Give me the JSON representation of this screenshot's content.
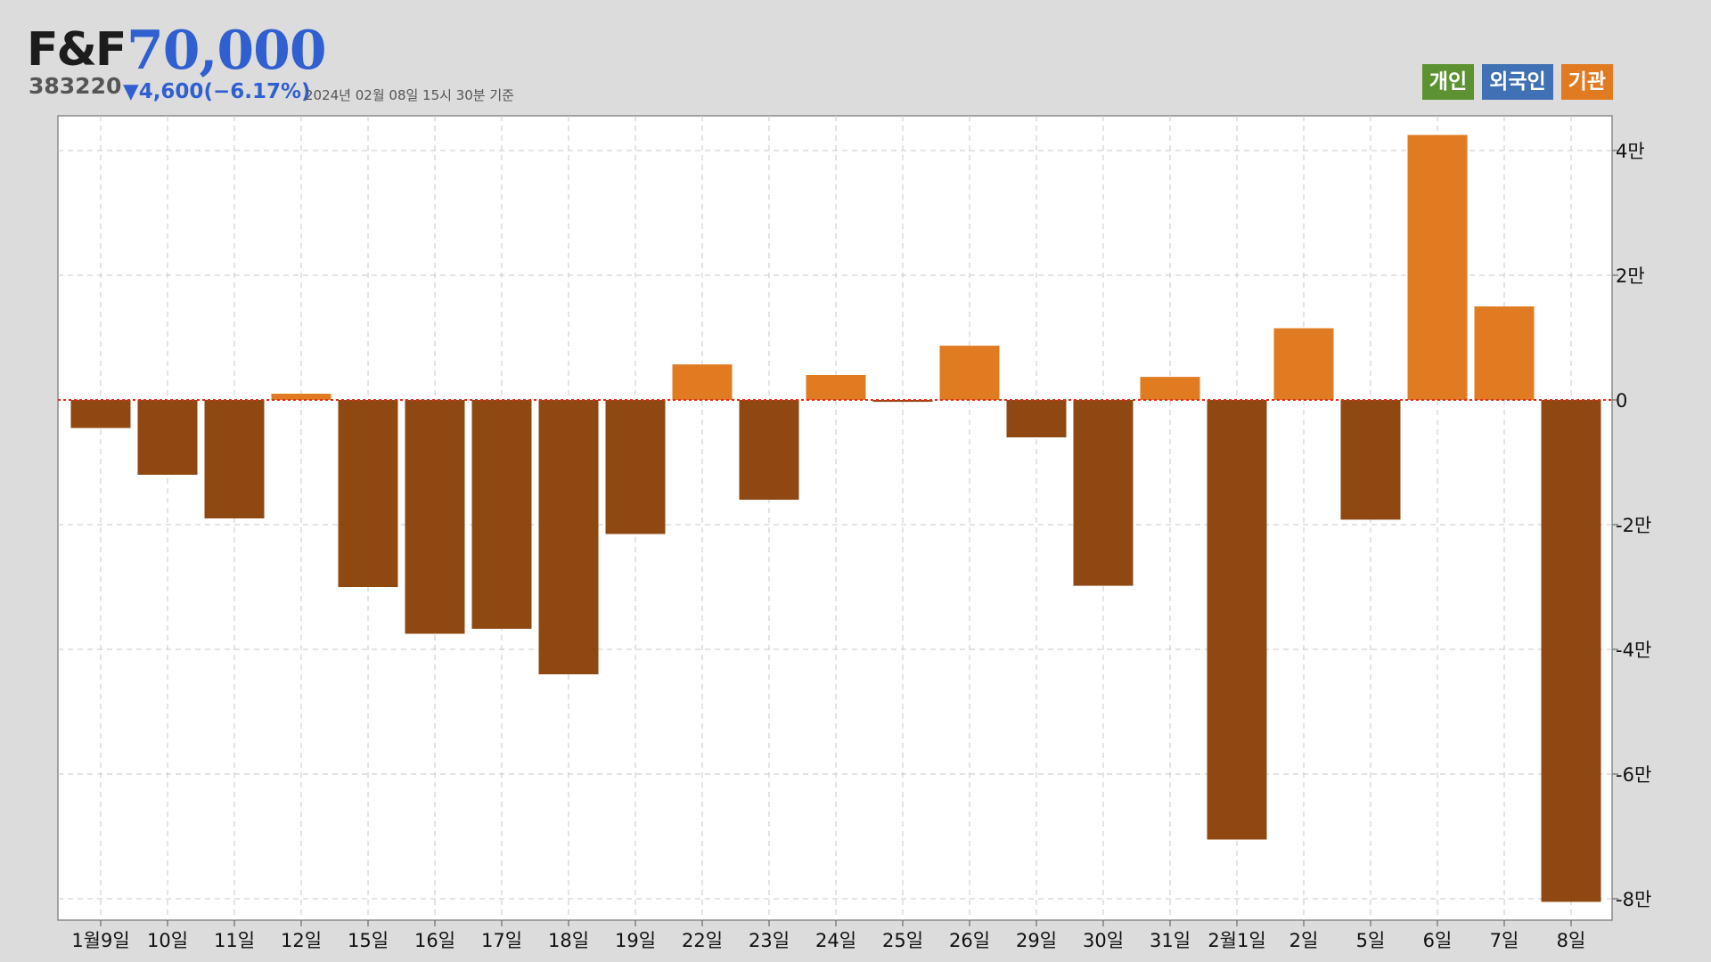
{
  "header": {
    "name": "F&F",
    "price": "70,000",
    "code": "383220",
    "change": "▼4,600(−6.17%)",
    "timestamp": "2024년 02월 08일 15시 30분 기준"
  },
  "legend": [
    {
      "label": "개인",
      "color": "#5c9232"
    },
    {
      "label": "외국인",
      "color": "#4071b4"
    },
    {
      "label": "기관",
      "color": "#e07b22"
    }
  ],
  "colors": {
    "positive": "#e07b22",
    "negative": "#8f4812",
    "zero_line": "#e0301e"
  },
  "chart_data": {
    "type": "bar",
    "series_name": "기관",
    "categories": [
      "1월9일",
      "10일",
      "11일",
      "12일",
      "15일",
      "16일",
      "17일",
      "18일",
      "19일",
      "22일",
      "23일",
      "24일",
      "25일",
      "26일",
      "29일",
      "30일",
      "31일",
      "2월1일",
      "2일",
      "5일",
      "6일",
      "7일",
      "8일"
    ],
    "values": [
      -4500,
      -12000,
      -19000,
      1000,
      -30000,
      -37500,
      -36700,
      -44000,
      -21500,
      5700,
      -16000,
      4000,
      -300,
      8700,
      -6000,
      -29800,
      3700,
      -70500,
      11500,
      -19200,
      42500,
      15000,
      -80500
    ],
    "y_ticks": [
      40000,
      20000,
      0,
      -20000,
      -40000,
      -60000,
      -80000
    ],
    "y_tick_labels": [
      "4만",
      "2만",
      "0",
      "-2만",
      "-4만",
      "-6만",
      "-8만"
    ],
    "ylim": [
      -82000,
      45000
    ],
    "grid": true,
    "y_axis_position": "right"
  }
}
